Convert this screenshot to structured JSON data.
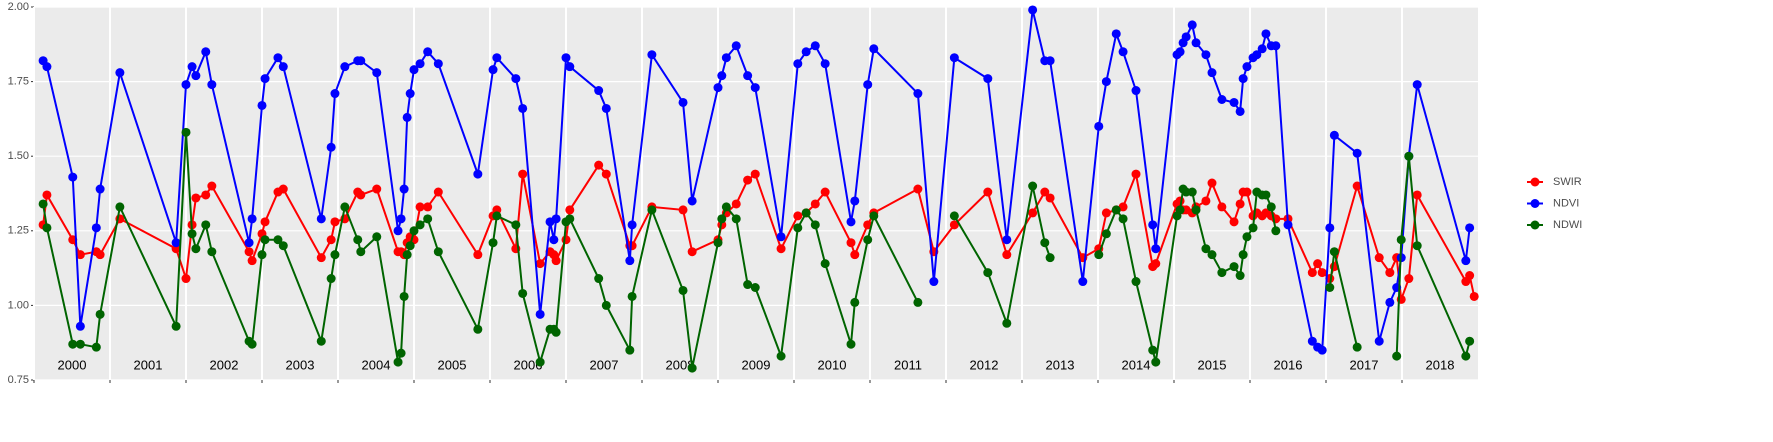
{
  "chart_data": {
    "type": "line",
    "x": [
      2000.12,
      2000.17,
      2000.51,
      2000.61,
      2000.82,
      2000.87,
      2001.13,
      2001.87,
      2002.0,
      2002.08,
      2002.13,
      2002.26,
      2002.34,
      2002.83,
      2002.87,
      2003.0,
      2003.04,
      2003.21,
      2003.28,
      2003.78,
      2003.91,
      2003.96,
      2004.09,
      2004.26,
      2004.3,
      2004.51,
      2004.79,
      2004.83,
      2004.87,
      2004.91,
      2004.95,
      2005.0,
      2005.08,
      2005.18,
      2005.32,
      2005.84,
      2006.04,
      2006.09,
      2006.34,
      2006.43,
      2006.66,
      2006.79,
      2006.84,
      2006.87,
      2007.0,
      2007.05,
      2007.43,
      2007.53,
      2007.84,
      2007.87,
      2008.13,
      2008.54,
      2008.66,
      2009.0,
      2009.05,
      2009.11,
      2009.24,
      2009.39,
      2009.49,
      2009.83,
      2010.05,
      2010.16,
      2010.28,
      2010.41,
      2010.75,
      2010.8,
      2010.97,
      2011.05,
      2011.63,
      2011.84,
      2012.11,
      2012.55,
      2012.8,
      2013.14,
      2013.3,
      2013.37,
      2013.8,
      2014.01,
      2014.11,
      2014.24,
      2014.33,
      2014.5,
      2014.72,
      2014.76,
      2015.04,
      2015.08,
      2015.12,
      2015.16,
      2015.24,
      2015.29,
      2015.42,
      2015.5,
      2015.63,
      2015.79,
      2015.87,
      2015.91,
      2015.96,
      2016.04,
      2016.09,
      2016.16,
      2016.21,
      2016.28,
      2016.34,
      2016.5,
      2016.82,
      2016.89,
      2016.95,
      2017.05,
      2017.11,
      2017.41,
      2017.7,
      2017.84,
      2017.93,
      2017.99,
      2018.09,
      2018.2,
      2018.84,
      2018.89,
      2018.95
    ],
    "series": [
      {
        "name": "SWIR",
        "color": "#ff0000",
        "values": [
          1.27,
          1.37,
          1.22,
          1.17,
          1.18,
          1.17,
          1.29,
          1.19,
          1.09,
          1.27,
          1.36,
          1.37,
          1.4,
          1.18,
          1.15,
          1.24,
          1.28,
          1.38,
          1.39,
          1.16,
          1.22,
          1.28,
          1.29,
          1.38,
          1.37,
          1.39,
          1.18,
          1.18,
          1.17,
          1.21,
          1.23,
          1.22,
          1.33,
          1.33,
          1.38,
          1.17,
          1.3,
          1.32,
          1.19,
          1.44,
          1.14,
          1.18,
          1.17,
          1.15,
          1.22,
          1.32,
          1.47,
          1.44,
          1.2,
          1.2,
          1.33,
          1.32,
          1.18,
          1.22,
          1.27,
          1.31,
          1.34,
          1.42,
          1.44,
          1.19,
          1.3,
          1.31,
          1.34,
          1.38,
          1.21,
          1.17,
          1.27,
          1.31,
          1.39,
          1.18,
          1.27,
          1.38,
          1.17,
          1.31,
          1.38,
          1.36,
          1.16,
          1.19,
          1.31,
          1.32,
          1.33,
          1.44,
          1.13,
          1.14,
          1.34,
          1.35,
          1.32,
          1.32,
          1.31,
          1.33,
          1.35,
          1.41,
          1.33,
          1.28,
          1.34,
          1.38,
          1.38,
          1.3,
          1.31,
          1.3,
          1.31,
          1.3,
          1.29,
          1.29,
          1.11,
          1.14,
          1.11,
          1.09,
          1.13,
          1.4,
          1.16,
          1.11,
          1.16,
          1.02,
          1.09,
          1.37,
          1.08,
          1.1,
          1.03
        ]
      },
      {
        "name": "NDVI",
        "color": "#0000ff",
        "values": [
          1.82,
          1.8,
          1.43,
          0.93,
          1.26,
          1.39,
          1.78,
          1.21,
          1.74,
          1.8,
          1.77,
          1.85,
          1.74,
          1.21,
          1.29,
          1.67,
          1.76,
          1.83,
          1.8,
          1.29,
          1.53,
          1.71,
          1.8,
          1.82,
          1.82,
          1.78,
          1.25,
          1.29,
          1.39,
          1.63,
          1.71,
          1.79,
          1.81,
          1.85,
          1.81,
          1.44,
          1.79,
          1.83,
          1.76,
          1.66,
          0.97,
          1.28,
          1.22,
          1.29,
          1.83,
          1.8,
          1.72,
          1.66,
          1.15,
          1.27,
          1.84,
          1.68,
          1.35,
          1.73,
          1.77,
          1.83,
          1.87,
          1.77,
          1.73,
          1.23,
          1.81,
          1.85,
          1.87,
          1.81,
          1.28,
          1.35,
          1.74,
          1.86,
          1.71,
          1.08,
          1.83,
          1.76,
          1.22,
          1.99,
          1.82,
          1.82,
          1.08,
          1.6,
          1.75,
          1.91,
          1.85,
          1.72,
          1.27,
          1.19,
          1.84,
          1.85,
          1.88,
          1.9,
          1.94,
          1.88,
          1.84,
          1.78,
          1.69,
          1.68,
          1.65,
          1.76,
          1.8,
          1.83,
          1.84,
          1.86,
          1.91,
          1.87,
          1.87,
          1.27,
          0.88,
          0.86,
          0.85,
          1.26,
          1.57,
          1.51,
          0.88,
          1.01,
          1.06,
          1.16,
          1.5,
          1.74,
          1.15,
          1.26,
          null
        ]
      },
      {
        "name": "NDWI",
        "color": "#006400",
        "values": [
          1.34,
          1.26,
          0.87,
          0.87,
          0.86,
          0.97,
          1.33,
          0.93,
          1.58,
          1.24,
          1.19,
          1.27,
          1.18,
          0.88,
          0.87,
          1.17,
          1.22,
          1.22,
          1.2,
          0.88,
          1.09,
          1.17,
          1.33,
          1.22,
          1.18,
          1.23,
          0.81,
          0.84,
          1.03,
          1.17,
          1.2,
          1.25,
          1.27,
          1.29,
          1.18,
          0.92,
          1.21,
          1.3,
          1.27,
          1.04,
          0.81,
          0.92,
          0.92,
          0.91,
          1.28,
          1.29,
          1.09,
          1.0,
          0.85,
          1.03,
          1.32,
          1.05,
          0.79,
          1.21,
          1.29,
          1.33,
          1.29,
          1.07,
          1.06,
          0.83,
          1.26,
          1.31,
          1.27,
          1.14,
          0.87,
          1.01,
          1.22,
          1.3,
          1.01,
          null,
          1.3,
          1.11,
          0.94,
          1.4,
          1.21,
          1.16,
          null,
          1.17,
          1.24,
          1.32,
          1.29,
          1.08,
          0.85,
          0.81,
          1.3,
          1.32,
          1.39,
          1.38,
          1.38,
          1.32,
          1.19,
          1.17,
          1.11,
          1.13,
          1.1,
          1.17,
          1.23,
          1.26,
          1.38,
          1.37,
          1.37,
          1.33,
          1.25,
          null,
          null,
          null,
          null,
          1.06,
          1.18,
          0.86,
          null,
          null,
          0.83,
          1.22,
          1.5,
          1.2,
          0.83,
          0.88,
          null
        ]
      }
    ],
    "xlim": [
      2000,
      2019
    ],
    "xticks": [
      2000,
      2001,
      2002,
      2003,
      2004,
      2005,
      2006,
      2007,
      2008,
      2009,
      2010,
      2011,
      2012,
      2013,
      2014,
      2015,
      2016,
      2017,
      2018
    ],
    "ylim": [
      0.75,
      2.0
    ],
    "yticks": [
      {
        "value": 0.75,
        "label": "0.75"
      },
      {
        "value": 1.0,
        "label": "1.00"
      },
      {
        "value": 1.25,
        "label": "1.25"
      },
      {
        "value": 1.5,
        "label": "1.50"
      },
      {
        "value": 1.75,
        "label": "1.75"
      },
      {
        "value": 2.0,
        "label": "2.00"
      }
    ],
    "grid": true,
    "legend": "right"
  }
}
